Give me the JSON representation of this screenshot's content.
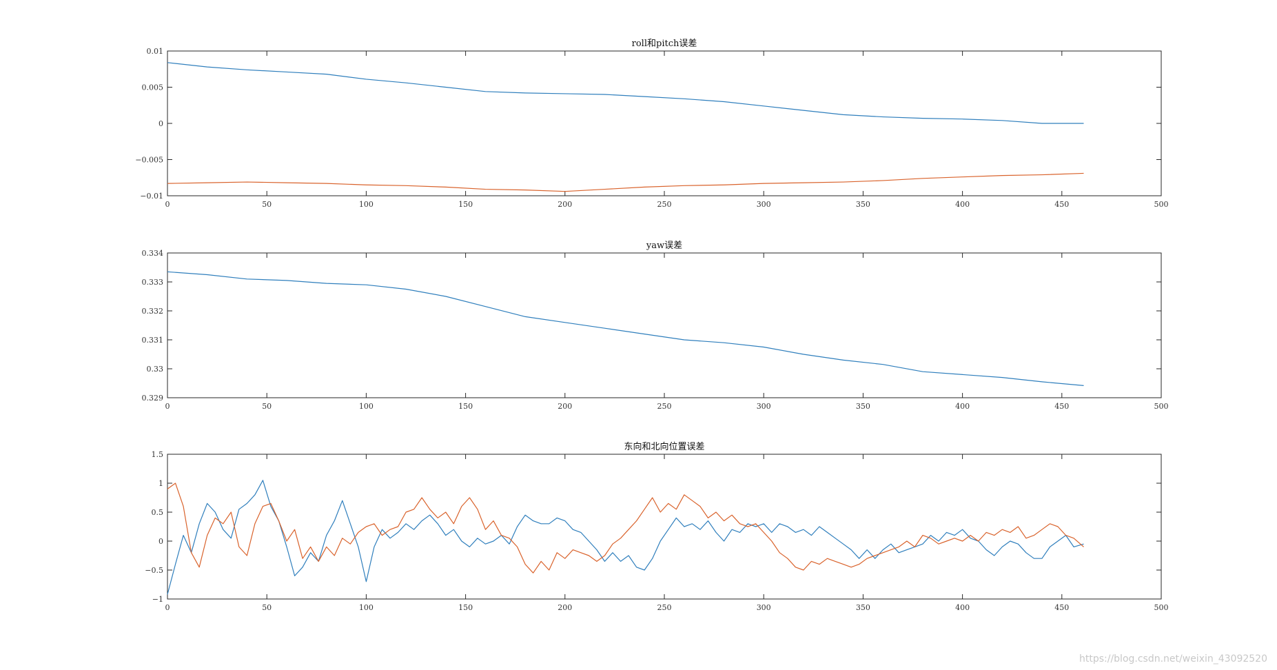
{
  "watermark": "https://blog.csdn.net/weixin_43092520",
  "colors": {
    "series1": "#2e7ebc",
    "series2": "#d9622b",
    "axis": "#262626"
  },
  "chart_data": [
    {
      "type": "line",
      "title": "roll和pitch误差",
      "xlim": [
        0,
        500
      ],
      "ylim": [
        -0.01,
        0.01
      ],
      "xticks": [
        0,
        50,
        100,
        150,
        200,
        250,
        300,
        350,
        400,
        450,
        500
      ],
      "yticks": [
        -0.01,
        -0.005,
        0,
        0.005,
        0.01
      ],
      "xtick_labels": [
        "0",
        "50",
        "100",
        "150",
        "200",
        "250",
        "300",
        "350",
        "400",
        "450",
        "500"
      ],
      "ytick_labels": [
        "−0.01",
        "−0.005",
        "0",
        "0.005",
        "0.01"
      ],
      "grid": false,
      "series": [
        {
          "x": [
            0,
            20,
            40,
            60,
            80,
            100,
            120,
            140,
            160,
            180,
            200,
            220,
            240,
            260,
            280,
            300,
            320,
            340,
            360,
            380,
            400,
            420,
            440,
            461
          ],
          "y": [
            0.0084,
            0.0078,
            0.0074,
            0.0071,
            0.0068,
            0.0061,
            0.0056,
            0.005,
            0.0044,
            0.0042,
            0.0041,
            0.004,
            0.0037,
            0.0034,
            0.003,
            0.0024,
            0.0018,
            0.0012,
            0.0009,
            0.0007,
            0.0006,
            0.0004,
            0.0,
            0.0
          ]
        },
        {
          "x": [
            0,
            20,
            40,
            60,
            80,
            100,
            120,
            140,
            160,
            180,
            200,
            220,
            240,
            260,
            280,
            300,
            320,
            340,
            360,
            380,
            400,
            420,
            440,
            461
          ],
          "y": [
            -0.0083,
            -0.0082,
            -0.0081,
            -0.0082,
            -0.0083,
            -0.0085,
            -0.0086,
            -0.0088,
            -0.0091,
            -0.0092,
            -0.0094,
            -0.0091,
            -0.0088,
            -0.0086,
            -0.0085,
            -0.0083,
            -0.0082,
            -0.0081,
            -0.0079,
            -0.0076,
            -0.0074,
            -0.0072,
            -0.0071,
            -0.0069
          ]
        }
      ]
    },
    {
      "type": "line",
      "title": "yaw误差",
      "xlim": [
        0,
        500
      ],
      "ylim": [
        0.329,
        0.334
      ],
      "xticks": [
        0,
        50,
        100,
        150,
        200,
        250,
        300,
        350,
        400,
        450,
        500
      ],
      "yticks": [
        0.329,
        0.33,
        0.331,
        0.332,
        0.333,
        0.334
      ],
      "xtick_labels": [
        "0",
        "50",
        "100",
        "150",
        "200",
        "250",
        "300",
        "350",
        "400",
        "450",
        "500"
      ],
      "ytick_labels": [
        "0.329",
        "0.33",
        "0.331",
        "0.332",
        "0.333",
        "0.334"
      ],
      "grid": false,
      "series": [
        {
          "x": [
            0,
            20,
            40,
            60,
            80,
            100,
            120,
            140,
            160,
            180,
            200,
            220,
            240,
            260,
            280,
            300,
            320,
            340,
            360,
            380,
            400,
            420,
            440,
            461
          ],
          "y": [
            0.33335,
            0.33325,
            0.3331,
            0.33305,
            0.33295,
            0.3329,
            0.33275,
            0.3325,
            0.33215,
            0.3318,
            0.3316,
            0.3314,
            0.3312,
            0.331,
            0.3309,
            0.33075,
            0.3305,
            0.3303,
            0.33015,
            0.3299,
            0.3298,
            0.3297,
            0.32955,
            0.32942
          ]
        }
      ]
    },
    {
      "type": "line",
      "title": "东向和北向位置误差",
      "xlim": [
        0,
        500
      ],
      "ylim": [
        -1,
        1.5
      ],
      "xticks": [
        0,
        50,
        100,
        150,
        200,
        250,
        300,
        350,
        400,
        450,
        500
      ],
      "yticks": [
        -1,
        -0.5,
        0,
        0.5,
        1,
        1.5
      ],
      "xtick_labels": [
        "0",
        "50",
        "100",
        "150",
        "200",
        "250",
        "300",
        "350",
        "400",
        "450",
        "500"
      ],
      "ytick_labels": [
        "−1",
        "−0.5",
        "0",
        "0.5",
        "1",
        "1.5"
      ],
      "grid": false,
      "series": [
        {
          "x": [
            0,
            4,
            8,
            12,
            16,
            20,
            24,
            28,
            32,
            36,
            40,
            44,
            48,
            52,
            56,
            60,
            64,
            68,
            72,
            76,
            80,
            84,
            88,
            92,
            96,
            100,
            104,
            108,
            112,
            116,
            120,
            124,
            128,
            132,
            136,
            140,
            144,
            148,
            152,
            156,
            160,
            164,
            168,
            172,
            176,
            180,
            184,
            188,
            192,
            196,
            200,
            204,
            208,
            212,
            216,
            220,
            224,
            228,
            232,
            236,
            240,
            244,
            248,
            252,
            256,
            260,
            264,
            268,
            272,
            276,
            280,
            284,
            288,
            292,
            296,
            300,
            304,
            308,
            312,
            316,
            320,
            324,
            328,
            332,
            336,
            340,
            344,
            348,
            352,
            356,
            360,
            364,
            368,
            372,
            376,
            380,
            384,
            388,
            392,
            396,
            400,
            404,
            408,
            412,
            416,
            420,
            424,
            428,
            432,
            436,
            440,
            444,
            448,
            452,
            456,
            461
          ],
          "y": [
            -0.92,
            -0.4,
            0.1,
            -0.2,
            0.3,
            0.65,
            0.5,
            0.2,
            0.05,
            0.55,
            0.65,
            0.8,
            1.05,
            0.6,
            0.35,
            -0.1,
            -0.6,
            -0.45,
            -0.2,
            -0.35,
            0.1,
            0.35,
            0.7,
            0.3,
            -0.1,
            -0.7,
            -0.1,
            0.2,
            0.05,
            0.15,
            0.3,
            0.2,
            0.35,
            0.45,
            0.3,
            0.1,
            0.2,
            0.0,
            -0.1,
            0.05,
            -0.05,
            0.0,
            0.1,
            -0.05,
            0.25,
            0.45,
            0.35,
            0.3,
            0.3,
            0.4,
            0.35,
            0.2,
            0.15,
            0.0,
            -0.15,
            -0.35,
            -0.2,
            -0.35,
            -0.25,
            -0.45,
            -0.5,
            -0.3,
            0.0,
            0.2,
            0.4,
            0.25,
            0.3,
            0.2,
            0.35,
            0.15,
            0.0,
            0.2,
            0.15,
            0.3,
            0.25,
            0.3,
            0.15,
            0.3,
            0.25,
            0.15,
            0.2,
            0.1,
            0.25,
            0.15,
            0.05,
            -0.05,
            -0.15,
            -0.3,
            -0.15,
            -0.3,
            -0.15,
            -0.05,
            -0.2,
            -0.15,
            -0.1,
            -0.05,
            0.1,
            0.0,
            0.15,
            0.1,
            0.2,
            0.05,
            0.0,
            -0.15,
            -0.25,
            -0.1,
            0.0,
            -0.05,
            -0.2,
            -0.3,
            -0.3,
            -0.1,
            0.0,
            0.1,
            -0.1,
            -0.05
          ]
        },
        {
          "x": [
            0,
            4,
            8,
            12,
            16,
            20,
            24,
            28,
            32,
            36,
            40,
            44,
            48,
            52,
            56,
            60,
            64,
            68,
            72,
            76,
            80,
            84,
            88,
            92,
            96,
            100,
            104,
            108,
            112,
            116,
            120,
            124,
            128,
            132,
            136,
            140,
            144,
            148,
            152,
            156,
            160,
            164,
            168,
            172,
            176,
            180,
            184,
            188,
            192,
            196,
            200,
            204,
            208,
            212,
            216,
            220,
            224,
            228,
            232,
            236,
            240,
            244,
            248,
            252,
            256,
            260,
            264,
            268,
            272,
            276,
            280,
            284,
            288,
            292,
            296,
            300,
            304,
            308,
            312,
            316,
            320,
            324,
            328,
            332,
            336,
            340,
            344,
            348,
            352,
            356,
            360,
            364,
            368,
            372,
            376,
            380,
            384,
            388,
            392,
            396,
            400,
            404,
            408,
            412,
            416,
            420,
            424,
            428,
            432,
            436,
            440,
            444,
            448,
            452,
            456,
            461
          ],
          "y": [
            0.9,
            1.0,
            0.6,
            -0.2,
            -0.45,
            0.1,
            0.4,
            0.3,
            0.5,
            -0.1,
            -0.25,
            0.3,
            0.6,
            0.65,
            0.35,
            0.0,
            0.2,
            -0.3,
            -0.1,
            -0.35,
            -0.1,
            -0.25,
            0.05,
            -0.05,
            0.15,
            0.25,
            0.3,
            0.1,
            0.2,
            0.25,
            0.5,
            0.55,
            0.75,
            0.55,
            0.4,
            0.5,
            0.3,
            0.6,
            0.75,
            0.55,
            0.2,
            0.35,
            0.1,
            0.05,
            -0.1,
            -0.4,
            -0.55,
            -0.35,
            -0.5,
            -0.2,
            -0.3,
            -0.15,
            -0.2,
            -0.25,
            -0.35,
            -0.25,
            -0.05,
            0.05,
            0.2,
            0.35,
            0.55,
            0.75,
            0.5,
            0.65,
            0.55,
            0.8,
            0.7,
            0.6,
            0.4,
            0.5,
            0.35,
            0.45,
            0.3,
            0.25,
            0.3,
            0.15,
            0.0,
            -0.2,
            -0.3,
            -0.45,
            -0.5,
            -0.35,
            -0.4,
            -0.3,
            -0.35,
            -0.4,
            -0.45,
            -0.4,
            -0.3,
            -0.25,
            -0.2,
            -0.15,
            -0.1,
            0.0,
            -0.1,
            0.1,
            0.05,
            -0.05,
            0.0,
            0.05,
            0.0,
            0.1,
            0.0,
            0.15,
            0.1,
            0.2,
            0.15,
            0.25,
            0.05,
            0.1,
            0.2,
            0.3,
            0.25,
            0.1,
            0.05,
            -0.1
          ]
        }
      ]
    }
  ]
}
